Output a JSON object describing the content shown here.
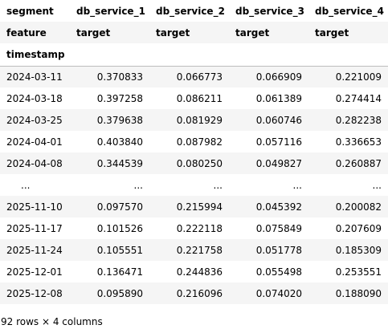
{
  "header": {
    "level0_name": "segment",
    "level0_values": [
      "db_service_1",
      "db_service_2",
      "db_service_3",
      "db_service_4"
    ],
    "level1_name": "feature",
    "level1_values": [
      "target",
      "target",
      "target",
      "target"
    ],
    "index_name": "timestamp"
  },
  "rows": [
    {
      "index": "2024-03-11",
      "values": [
        "0.370833",
        "0.066773",
        "0.066909",
        "0.221009"
      ]
    },
    {
      "index": "2024-03-18",
      "values": [
        "0.397258",
        "0.086211",
        "0.061389",
        "0.274414"
      ]
    },
    {
      "index": "2024-03-25",
      "values": [
        "0.379638",
        "0.081929",
        "0.060746",
        "0.282238"
      ]
    },
    {
      "index": "2024-04-01",
      "values": [
        "0.403840",
        "0.087982",
        "0.057116",
        "0.336653"
      ]
    },
    {
      "index": "2024-04-08",
      "values": [
        "0.344539",
        "0.080250",
        "0.049827",
        "0.260887"
      ]
    },
    {
      "index": "...",
      "values": [
        "...",
        "...",
        "...",
        "..."
      ]
    },
    {
      "index": "2025-11-10",
      "values": [
        "0.097570",
        "0.215994",
        "0.045392",
        "0.200082"
      ]
    },
    {
      "index": "2025-11-17",
      "values": [
        "0.101526",
        "0.222118",
        "0.075849",
        "0.207609"
      ]
    },
    {
      "index": "2025-11-24",
      "values": [
        "0.105551",
        "0.221758",
        "0.051778",
        "0.185309"
      ]
    },
    {
      "index": "2025-12-01",
      "values": [
        "0.136471",
        "0.244836",
        "0.055498",
        "0.253551"
      ]
    },
    {
      "index": "2025-12-08",
      "values": [
        "0.095890",
        "0.216096",
        "0.074020",
        "0.188090"
      ]
    }
  ],
  "shape_text": "92 rows × 4 columns"
}
